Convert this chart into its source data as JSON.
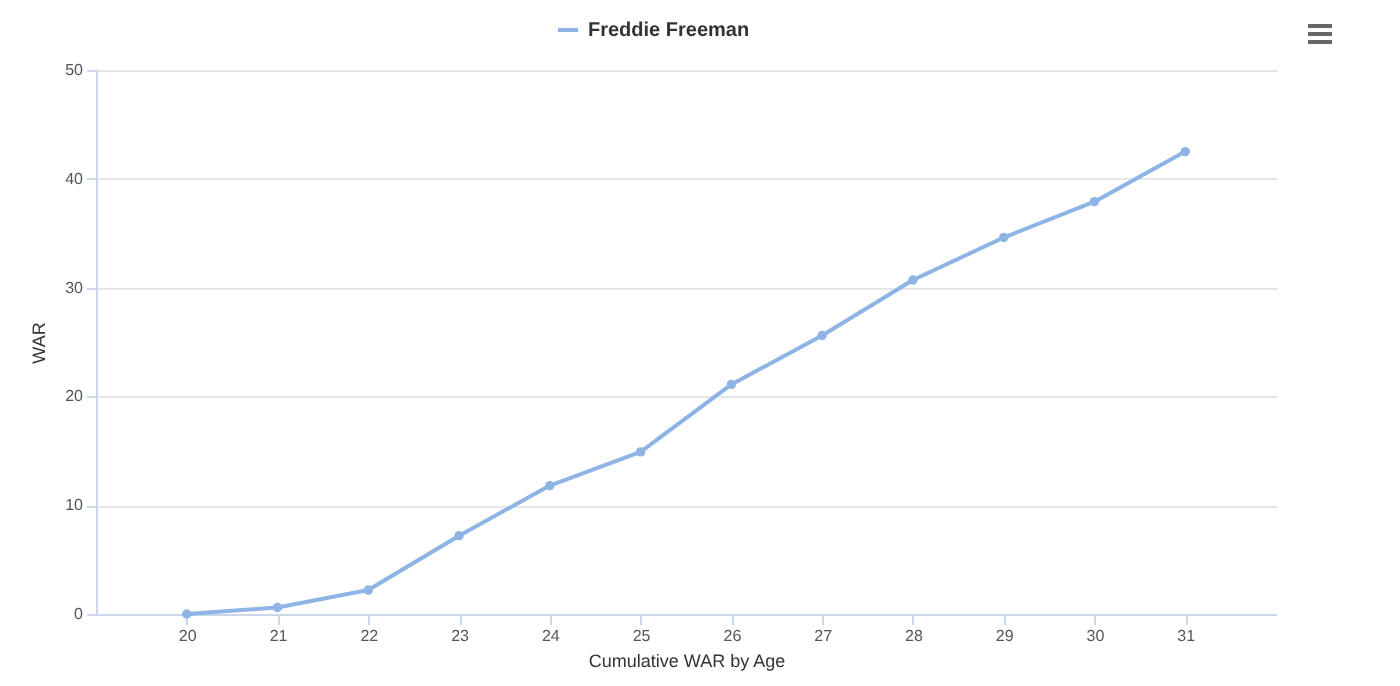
{
  "chart_data": {
    "type": "line",
    "xlabel": "Cumulative WAR by Age",
    "ylabel": "WAR",
    "x": [
      20,
      21,
      22,
      23,
      24,
      25,
      26,
      27,
      28,
      29,
      30,
      31
    ],
    "series": [
      {
        "name": "Freddie Freeman",
        "color": "#8db4e5",
        "values": [
          0,
          0.6,
          2.2,
          7.2,
          11.8,
          14.9,
          21.1,
          25.6,
          30.7,
          34.6,
          37.9,
          42.5
        ]
      }
    ],
    "xlim": [
      19,
      32
    ],
    "xticks": [
      20,
      21,
      22,
      23,
      24,
      25,
      26,
      27,
      28,
      29,
      30,
      31
    ],
    "ylim": [
      0,
      50
    ],
    "yticks": [
      0,
      10,
      20,
      30,
      40,
      50
    ],
    "grid": "y",
    "legend": "top",
    "marker": "circle",
    "line_style": "solid"
  }
}
